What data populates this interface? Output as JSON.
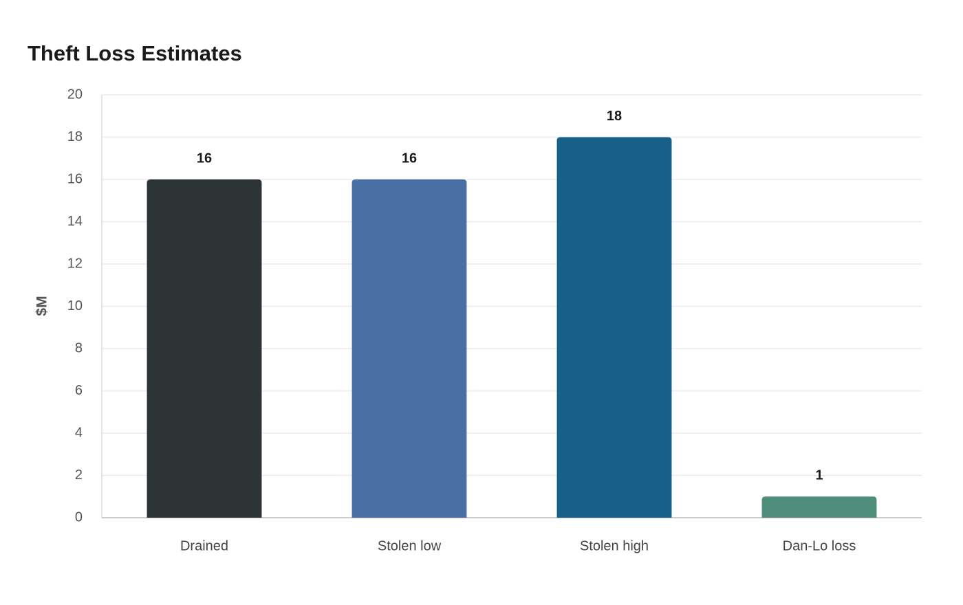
{
  "chart_data": {
    "type": "bar",
    "title": "Theft Loss Estimates",
    "y_label": "$M",
    "categories": [
      "Drained",
      "Stolen low",
      "Stolen high",
      "Dan-Lo loss"
    ],
    "values": [
      16,
      16,
      18,
      1
    ],
    "colors": [
      "#2d3436",
      "#4a6fa5",
      "#186088",
      "#4e8d7a"
    ],
    "ylim": [
      0,
      20
    ],
    "yticks": [
      0,
      2,
      4,
      6,
      8,
      10,
      12,
      14,
      16,
      18,
      20
    ],
    "grid": true
  }
}
